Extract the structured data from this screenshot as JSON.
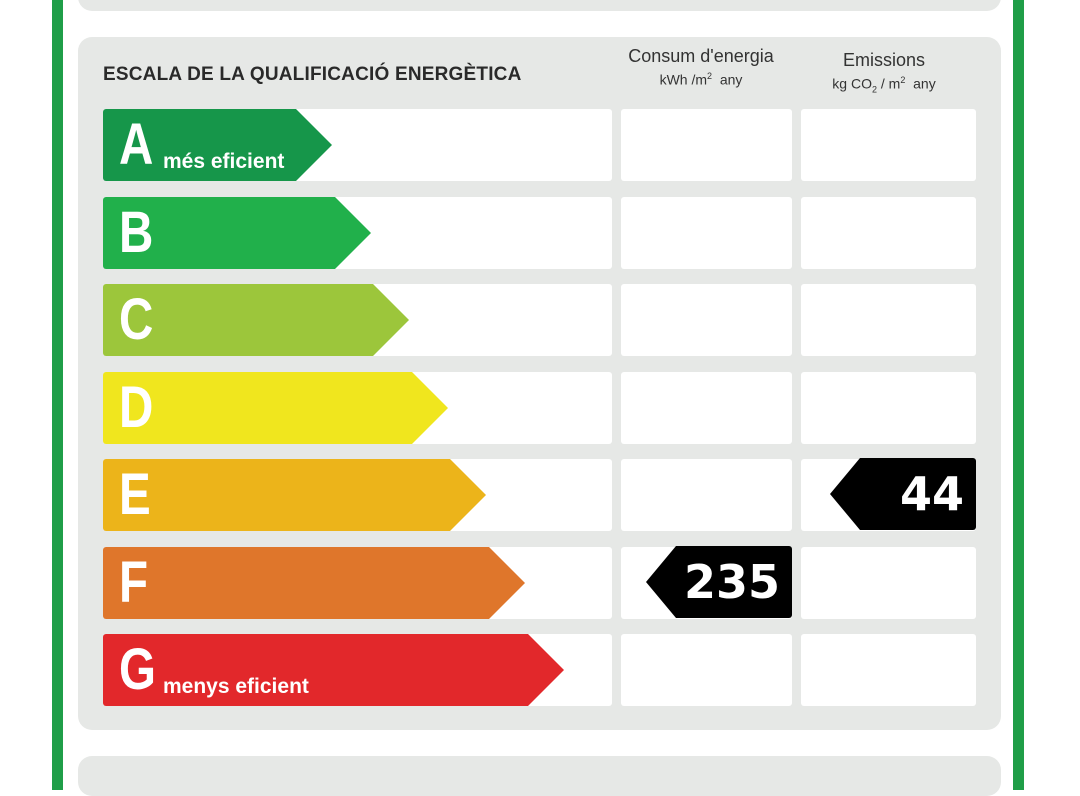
{
  "title": "ESCALA DE LA QUALIFICACIÓ ENERGÈTICA",
  "columns": {
    "consumption": {
      "label": "Consum d'energia",
      "unit_prefix": "kWh /m",
      "unit_exp": "2",
      "unit_suffix": "any"
    },
    "emissions": {
      "label": "Emissions",
      "unit_prefix": "kg CO",
      "unit_sub": "2",
      "unit_mid": " / m",
      "unit_exp": "2",
      "unit_suffix": "any"
    }
  },
  "classes": [
    {
      "letter": "A",
      "desc": "més eficient",
      "color": "#16964a"
    },
    {
      "letter": "B",
      "desc": "",
      "color": "#21b04b"
    },
    {
      "letter": "C",
      "desc": "",
      "color": "#9cc63b"
    },
    {
      "letter": "D",
      "desc": "",
      "color": "#f0e61e"
    },
    {
      "letter": "E",
      "desc": "",
      "color": "#ecb41a"
    },
    {
      "letter": "F",
      "desc": "",
      "color": "#df762b"
    },
    {
      "letter": "G",
      "desc": "menys eficient",
      "color": "#e2282b"
    }
  ],
  "ratings": {
    "consumption": {
      "class": "F",
      "value": "235"
    },
    "emissions": {
      "class": "E",
      "value": "44"
    }
  }
}
